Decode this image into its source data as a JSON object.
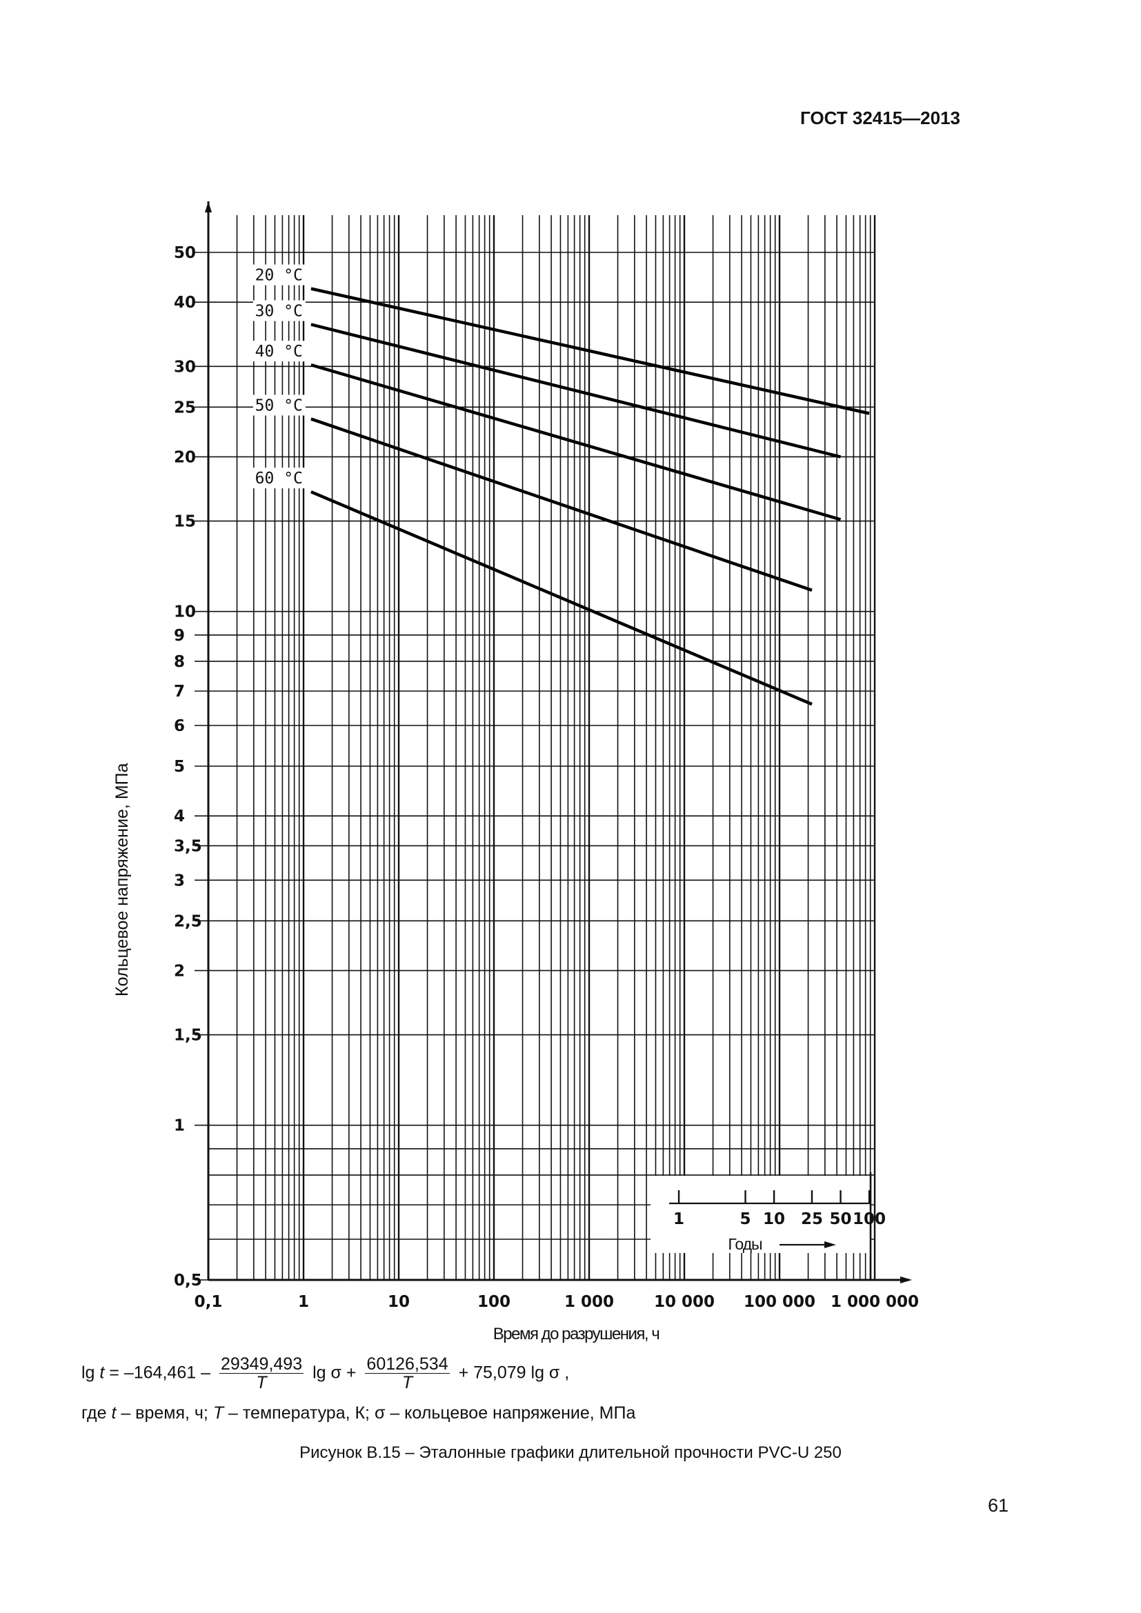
{
  "header": {
    "standard": "ГОСТ 32415—2013"
  },
  "chart_data": {
    "type": "line",
    "x_scale": "log",
    "y_scale": "log",
    "xlim": [
      0.1,
      1000000
    ],
    "ylim": [
      0.5,
      55
    ],
    "xlabel": "Время до разрушения, ч",
    "ylabel": "Кольцевое напряжение, МПа",
    "x_ticks": [
      {
        "value": 0.1,
        "label": "0,1"
      },
      {
        "value": 1,
        "label": "1"
      },
      {
        "value": 10,
        "label": "10"
      },
      {
        "value": 100,
        "label": "100"
      },
      {
        "value": 1000,
        "label": "1 000"
      },
      {
        "value": 10000,
        "label": "10 000"
      },
      {
        "value": 100000,
        "label": "100 000"
      },
      {
        "value": 1000000,
        "label": "1 000 000"
      }
    ],
    "y_ticks": [
      {
        "value": 50,
        "label": "50"
      },
      {
        "value": 40,
        "label": "40"
      },
      {
        "value": 30,
        "label": "30"
      },
      {
        "value": 25,
        "label": "25"
      },
      {
        "value": 20,
        "label": "20"
      },
      {
        "value": 15,
        "label": "15"
      },
      {
        "value": 10,
        "label": "10"
      },
      {
        "value": 9,
        "label": "9"
      },
      {
        "value": 8,
        "label": "8"
      },
      {
        "value": 7,
        "label": "7"
      },
      {
        "value": 6,
        "label": "6"
      },
      {
        "value": 5,
        "label": "5"
      },
      {
        "value": 4,
        "label": "4"
      },
      {
        "value": 3.5,
        "label": "3,5"
      },
      {
        "value": 3,
        "label": "3"
      },
      {
        "value": 2.5,
        "label": "2,5"
      },
      {
        "value": 2,
        "label": "2"
      },
      {
        "value": 1.5,
        "label": "1,5"
      },
      {
        "value": 1,
        "label": "1"
      },
      {
        "value": 0.5,
        "label": "0,5"
      }
    ],
    "series": [
      {
        "name": "20 °C",
        "x": [
          1.2,
          876000
        ],
        "y": [
          42.5,
          24.3
        ]
      },
      {
        "name": "30 °C",
        "x": [
          1.2,
          438000
        ],
        "y": [
          36.2,
          20.0
        ]
      },
      {
        "name": "40 °C",
        "x": [
          1.2,
          438000
        ],
        "y": [
          30.2,
          15.1
        ]
      },
      {
        "name": "50 °C",
        "x": [
          1.2,
          219000
        ],
        "y": [
          23.7,
          11.0
        ]
      },
      {
        "name": "60 °C",
        "x": [
          1.2,
          219000
        ],
        "y": [
          17.1,
          6.6
        ]
      }
    ],
    "years_scale": {
      "label": "Годы",
      "ticks": [
        {
          "years": 1,
          "label": "1"
        },
        {
          "years": 5,
          "label": "5"
        },
        {
          "years": 10,
          "label": "10"
        },
        {
          "years": 25,
          "label": "25"
        },
        {
          "years": 50,
          "label": "50"
        },
        {
          "years": 100,
          "label": "100"
        }
      ]
    },
    "grid": true
  },
  "formula": {
    "lead": "lg ",
    "t": "t",
    "p1": " = –164,461 –",
    "f1_num": "29349,493",
    "f1_den": "T",
    "p2": "lg σ +",
    "f2_num": "60126,534",
    "f2_den": "T",
    "p3": "+ 75,079 lg σ ,"
  },
  "where": {
    "w1": "где ",
    "t": "t",
    "w2": " – время, ч; ",
    "T": "T",
    "w3": " – температура, К; σ – кольцевое напряжение, МПа"
  },
  "caption": "Рисунок В.15 – Эталонные графики длительной прочности PVC-U 250",
  "page_number": "61"
}
